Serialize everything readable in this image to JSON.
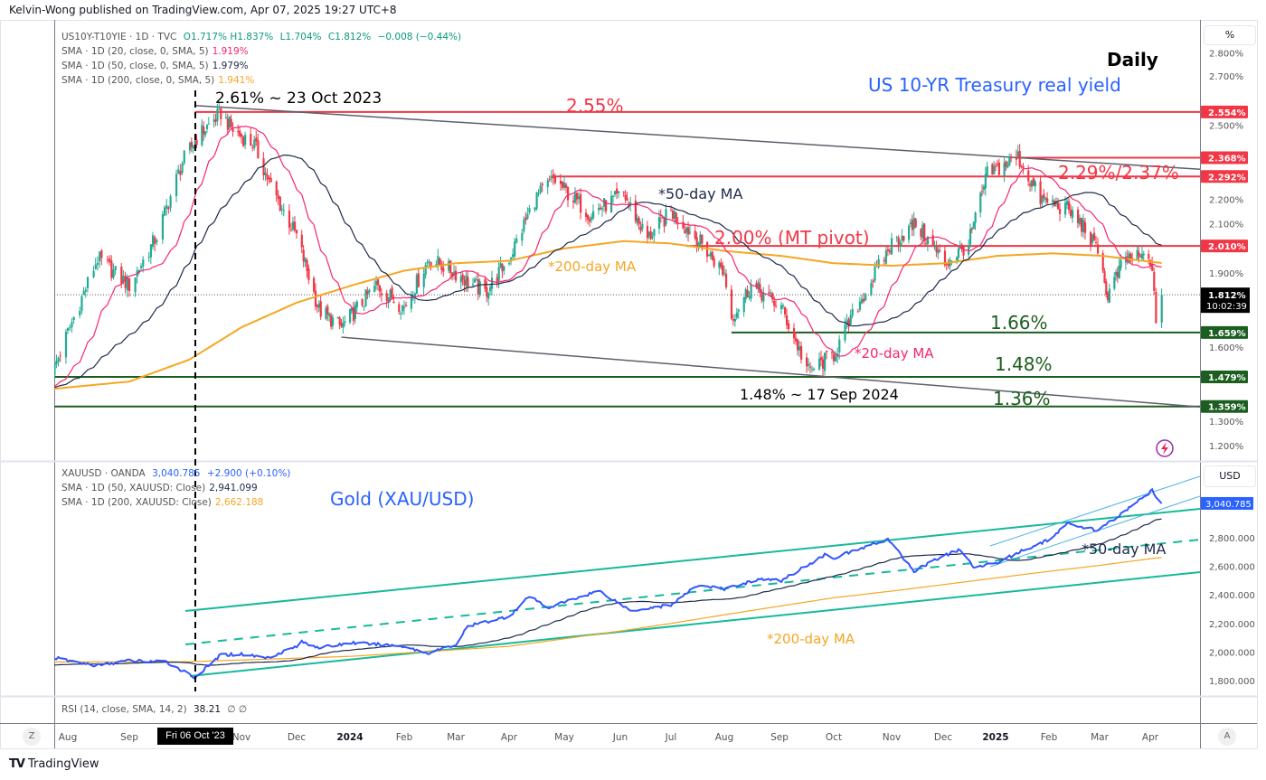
{
  "publisher": "Kelvin-Wong published on TradingView.com, Apr 07, 2025 19:27 UTC+8",
  "brand": "TradingView",
  "main_legend": {
    "symbol": "US10Y-T10YIE · 1D · TVC",
    "open": "O1.717%",
    "high": "H1.837%",
    "low": "L1.704%",
    "close": "C1.812%",
    "change": "−0.008 (−0.44%)",
    "sma20_label": "SMA · 1D (20, close, 0, SMA, 5)",
    "sma20_value": "1.919%",
    "sma50_label": "SMA · 1D (50, close, 0, SMA, 5)",
    "sma50_value": "1.979%",
    "sma200_label": "SMA · 1D (200, close, 0, SMA, 5)",
    "sma200_value": "1.941%"
  },
  "gold_legend": {
    "symbol": "XAUUSD · OANDA",
    "price": "3,040.785",
    "change": "+2.900 (+0.10%)",
    "sma50_label": "SMA · 1D (50, XAUUSD: Close)",
    "sma50_value": "2,941.099",
    "sma200_label": "SMA · 1D (200, XAUUSD: Close)",
    "sma200_value": "2,662.188"
  },
  "rsi_legend": {
    "label": "RSI (14, close, SMA, 14, 2)",
    "value": "38.21",
    "extra": "∅ ∅"
  },
  "axis": {
    "main_unit": "%",
    "gold_unit": "USD",
    "main_ticks": [
      "2.800%",
      "2.700%",
      "2.600%",
      "2.500%",
      "2.400%",
      "2.300%",
      "2.200%",
      "2.100%",
      "2.000%",
      "1.900%",
      "1.800%",
      "1.700%",
      "1.600%",
      "1.500%",
      "1.400%",
      "1.300%",
      "1.200%"
    ],
    "gold_ticks": [
      "2,800.000",
      "2,600.000",
      "2,400.000",
      "2,200.000",
      "2,000.000",
      "1,800.000"
    ],
    "time_ticks": [
      "Aug",
      "Sep",
      "Oct",
      "Nov",
      "Dec",
      "2024",
      "Feb",
      "Mar",
      "Apr",
      "May",
      "Jun",
      "Jul",
      "Aug",
      "Sep",
      "Oct",
      "Nov",
      "Dec",
      "2025",
      "Feb",
      "Mar",
      "Apr"
    ],
    "crosshair_date": "Fri 06 Oct '23",
    "left_button": "Z",
    "right_button": "A",
    "price_badges": [
      {
        "text": "2.554%",
        "value": 2.554,
        "color": "#f23645"
      },
      {
        "text": "2.368%",
        "value": 2.368,
        "color": "#f23645"
      },
      {
        "text": "2.292%",
        "value": 2.292,
        "color": "#f23645"
      },
      {
        "text": "2.010%",
        "value": 2.01,
        "color": "#f23645"
      },
      {
        "text": "1.659%",
        "value": 1.659,
        "color": "#1b5e20"
      },
      {
        "text": "1.479%",
        "value": 1.479,
        "color": "#1b5e20"
      },
      {
        "text": "1.359%",
        "value": 1.359,
        "color": "#1b5e20"
      }
    ],
    "last_price": {
      "text": "1.812%",
      "value": 1.812,
      "countdown": "10:02:39"
    },
    "gold_last": {
      "text": "3,040.785",
      "value": 3040.785,
      "color": "#2962ff"
    }
  },
  "annotations": {
    "title": "Daily",
    "subtitle": "US 10-YR Treasury real yield",
    "peak": "2.61% ~ 23 Oct 2023",
    "level_255": "2.55%",
    "level_229_237": "2.29%/2.37%",
    "ma50": "*50-day MA",
    "pivot": "2.00% (MT pivot)",
    "ma200": "*200-day MA",
    "level_166": "1.66%",
    "ma20": "*20-day MA",
    "level_148": "1.48%",
    "low": "1.48%  ~ 17 Sep 2024",
    "level_136": "1.36%",
    "gold_title": "Gold (XAU/USD)",
    "gold_ma50": "*50-day MA",
    "gold_ma200": "*200-day MA"
  },
  "colors": {
    "up": "#22ab94",
    "down": "#f23645",
    "sma20": "#f7256f",
    "sma50": "#1e2a4a",
    "sma200": "#f5a623",
    "gold": "#3355ff",
    "channel": "#16b99a",
    "inner": "#4fb3e0",
    "support": "#1b5e20",
    "resist": "#f23645"
  },
  "chart_data": [
    {
      "type": "candlestick",
      "title": "US10Y-T10YIE (US 10-YR Treasury real yield), Daily",
      "ylabel": "%",
      "ylim": [
        1.15,
        2.85
      ],
      "levels": [
        2.554,
        2.368,
        2.292,
        2.01,
        1.659,
        1.479,
        1.359
      ],
      "trendlines": [
        {
          "name": "upper",
          "from": [
            "2023-10-05",
            2.58
          ],
          "to": [
            "2025-04-30",
            2.32
          ]
        },
        {
          "name": "lower",
          "from": [
            "2023-12-27",
            1.64
          ],
          "to": [
            "2025-04-30",
            1.355
          ]
        }
      ],
      "close_waypoints": [
        [
          "2023-07-24",
          1.5
        ],
        [
          "2023-08-01",
          1.66
        ],
        [
          "2023-08-16",
          1.96
        ],
        [
          "2023-09-01",
          1.85
        ],
        [
          "2023-09-15",
          2.05
        ],
        [
          "2023-09-28",
          2.35
        ],
        [
          "2023-10-06",
          2.45
        ],
        [
          "2023-10-20",
          2.55
        ],
        [
          "2023-10-27",
          2.48
        ],
        [
          "2023-11-08",
          2.42
        ],
        [
          "2023-11-17",
          2.25
        ],
        [
          "2023-12-01",
          2.05
        ],
        [
          "2023-12-14",
          1.75
        ],
        [
          "2023-12-27",
          1.68
        ],
        [
          "2024-01-16",
          1.85
        ],
        [
          "2024-02-01",
          1.76
        ],
        [
          "2024-02-15",
          1.96
        ],
        [
          "2024-03-01",
          1.9
        ],
        [
          "2024-03-18",
          1.82
        ],
        [
          "2024-04-01",
          1.96
        ],
        [
          "2024-04-15",
          2.2
        ],
        [
          "2024-04-25",
          2.28
        ],
        [
          "2024-05-15",
          2.14
        ],
        [
          "2024-06-03",
          2.22
        ],
        [
          "2024-06-17",
          2.04
        ],
        [
          "2024-07-01",
          2.15
        ],
        [
          "2024-07-16",
          2.04
        ],
        [
          "2024-08-01",
          1.9
        ],
        [
          "2024-08-05",
          1.72
        ],
        [
          "2024-08-16",
          1.85
        ],
        [
          "2024-09-02",
          1.76
        ],
        [
          "2024-09-17",
          1.5
        ],
        [
          "2024-10-01",
          1.57
        ],
        [
          "2024-10-16",
          1.8
        ],
        [
          "2024-11-01",
          2.02
        ],
        [
          "2024-11-15",
          2.1
        ],
        [
          "2024-12-02",
          1.94
        ],
        [
          "2024-12-16",
          2.02
        ],
        [
          "2024-12-27",
          2.3
        ],
        [
          "2025-01-14",
          2.37
        ],
        [
          "2025-01-27",
          2.2
        ],
        [
          "2025-02-11",
          2.16
        ],
        [
          "2025-02-21",
          2.08
        ],
        [
          "2025-03-03",
          1.94
        ],
        [
          "2025-03-05",
          1.8
        ],
        [
          "2025-03-17",
          1.96
        ],
        [
          "2025-04-01",
          1.96
        ],
        [
          "2025-04-04",
          1.72
        ],
        [
          "2025-04-07",
          1.812
        ]
      ],
      "sma200_waypoints": [
        [
          "2023-07-24",
          1.43
        ],
        [
          "2023-09-01",
          1.46
        ],
        [
          "2023-10-02",
          1.55
        ],
        [
          "2023-11-01",
          1.68
        ],
        [
          "2023-12-01",
          1.78
        ],
        [
          "2024-01-02",
          1.85
        ],
        [
          "2024-02-01",
          1.91
        ],
        [
          "2024-03-01",
          1.94
        ],
        [
          "2024-04-01",
          1.95
        ],
        [
          "2024-05-01",
          2.0
        ],
        [
          "2024-06-03",
          2.03
        ],
        [
          "2024-07-01",
          2.02
        ],
        [
          "2024-08-01",
          1.99
        ],
        [
          "2024-09-02",
          1.97
        ],
        [
          "2024-10-01",
          1.94
        ],
        [
          "2024-11-01",
          1.93
        ],
        [
          "2024-12-02",
          1.94
        ],
        [
          "2025-01-02",
          1.97
        ],
        [
          "2025-02-03",
          1.98
        ],
        [
          "2025-03-03",
          1.97
        ],
        [
          "2025-04-07",
          1.941
        ]
      ]
    },
    {
      "type": "line",
      "title": "XAUUSD (Gold), Daily",
      "ylabel": "USD",
      "ylim": [
        1750,
        3150
      ],
      "series_waypoints": [
        [
          "2023-07-24",
          1962
        ],
        [
          "2023-08-15",
          1905
        ],
        [
          "2023-09-01",
          1940
        ],
        [
          "2023-09-20",
          1930
        ],
        [
          "2023-10-05",
          1820
        ],
        [
          "2023-10-20",
          1980
        ],
        [
          "2023-11-01",
          1985
        ],
        [
          "2023-11-15",
          1960
        ],
        [
          "2023-12-01",
          2040
        ],
        [
          "2023-12-04",
          2070
        ],
        [
          "2023-12-15",
          2030
        ],
        [
          "2024-01-02",
          2065
        ],
        [
          "2024-02-01",
          2040
        ],
        [
          "2024-02-14",
          1992
        ],
        [
          "2024-03-01",
          2050
        ],
        [
          "2024-03-08",
          2180
        ],
        [
          "2024-04-01",
          2250
        ],
        [
          "2024-04-12",
          2390
        ],
        [
          "2024-04-22",
          2310
        ],
        [
          "2024-05-20",
          2430
        ],
        [
          "2024-06-07",
          2290
        ],
        [
          "2024-07-01",
          2330
        ],
        [
          "2024-07-17",
          2470
        ],
        [
          "2024-08-01",
          2440
        ],
        [
          "2024-08-20",
          2510
        ],
        [
          "2024-09-02",
          2500
        ],
        [
          "2024-09-26",
          2680
        ],
        [
          "2024-10-01",
          2660
        ],
        [
          "2024-10-30",
          2790
        ],
        [
          "2024-11-14",
          2565
        ],
        [
          "2024-11-25",
          2640
        ],
        [
          "2024-12-11",
          2720
        ],
        [
          "2024-12-19",
          2590
        ],
        [
          "2025-01-02",
          2630
        ],
        [
          "2025-01-15",
          2700
        ],
        [
          "2025-02-03",
          2800
        ],
        [
          "2025-02-11",
          2900
        ],
        [
          "2025-02-28",
          2850
        ],
        [
          "2025-03-17",
          2990
        ],
        [
          "2025-04-02",
          3130
        ],
        [
          "2025-04-03",
          3110
        ],
        [
          "2025-04-07",
          3040.785
        ]
      ],
      "sma200_waypoints": [
        [
          "2023-07-24",
          1930
        ],
        [
          "2023-10-02",
          1932
        ],
        [
          "2024-01-02",
          1970
        ],
        [
          "2024-04-01",
          2040
        ],
        [
          "2024-07-01",
          2200
        ],
        [
          "2024-10-01",
          2380
        ],
        [
          "2025-01-02",
          2520
        ],
        [
          "2025-04-07",
          2662.188
        ]
      ]
    }
  ]
}
